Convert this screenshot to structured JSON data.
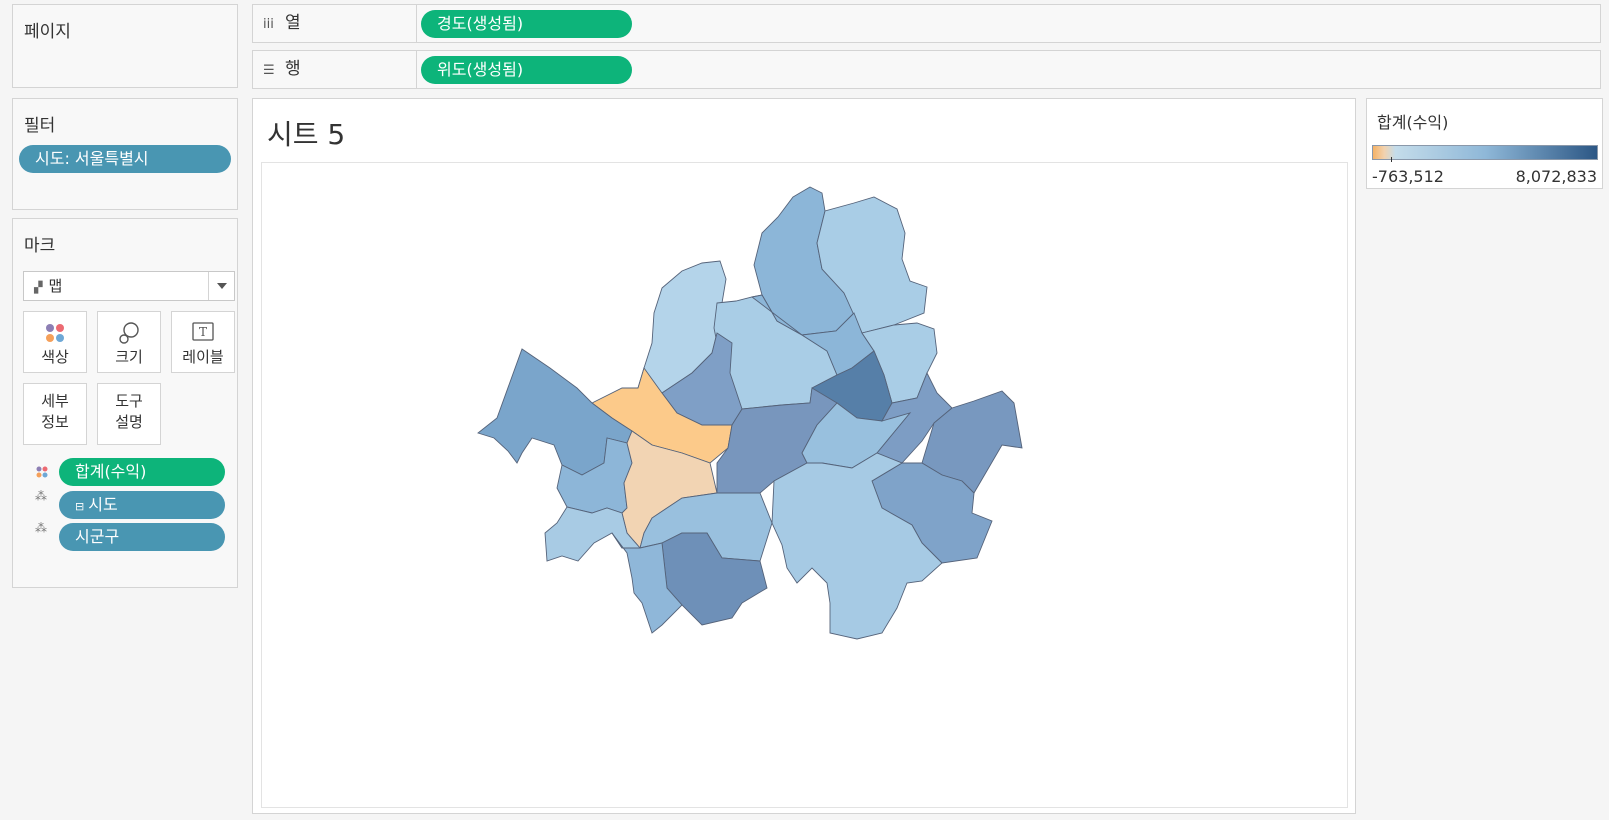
{
  "pages_panel": {
    "title": "페이지"
  },
  "columns_shelf": {
    "label": "열",
    "icon": "columns-icon",
    "pill": "경도(생성됨)"
  },
  "rows_shelf": {
    "label": "행",
    "icon": "rows-icon",
    "pill": "위도(생성됨)"
  },
  "filters_panel": {
    "title": "필터",
    "filter_pill": "시도: 서울특별시"
  },
  "marks_panel": {
    "title": "마크",
    "mark_type": "맵",
    "buttons": {
      "color": "색상",
      "size": "크기",
      "label": "레이블",
      "detail_line1": "세부",
      "detail_line2": "정보",
      "tooltip_line1": "도구",
      "tooltip_line2": "설명"
    },
    "fields": {
      "color_field": "합계(수익)",
      "detail_field_1": "시도",
      "detail_field_2": "시군구"
    }
  },
  "sheet": {
    "title": "시트 5"
  },
  "legend": {
    "title": "합계(수익)",
    "min_label": "-763,512",
    "max_label": "8,072,833",
    "colors": {
      "low": "#f5b266",
      "mid": "#c4dcea",
      "high": "#2c5785"
    }
  },
  "colors": {
    "accent_green": "#0db47a",
    "pill_blue": "#4996b2"
  }
}
